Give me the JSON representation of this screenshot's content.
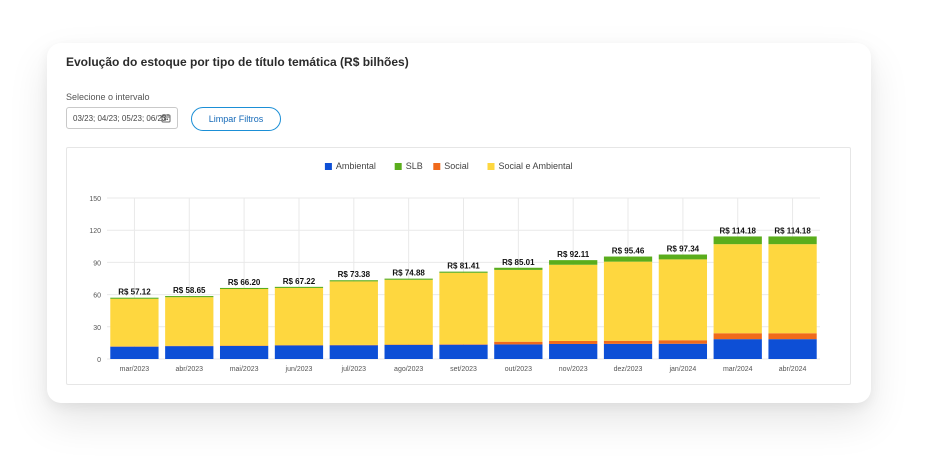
{
  "card": {
    "title": "Evolução do estoque por tipo de título temática (R$ bilhões)"
  },
  "filters": {
    "interval_label": "Selecione o intervalo",
    "interval_value": "03/23; 04/23; 05/23; 06/23",
    "calendar_icon": "calendar-icon",
    "clear_label": "Limpar Filtros"
  },
  "colors": {
    "Ambiental": "#0d4fd6",
    "SLB": "#5aad1c",
    "Social": "#f06a1b",
    "Social e Ambiental": "#fed73f",
    "grid": "#e9e9e9",
    "axis_text": "#555555",
    "button_border": "#1b8fd6"
  },
  "chart_data": {
    "type": "bar",
    "stacked": true,
    "categories": [
      "mar/2023",
      "abr/2023",
      "mai/2023",
      "jun/2023",
      "jul/2023",
      "ago/2023",
      "set/2023",
      "out/2023",
      "nov/2023",
      "dez/2023",
      "jan/2024",
      "mar/2024",
      "abr/2024"
    ],
    "series": [
      {
        "name": "Ambiental",
        "values": [
          11.5,
          12.0,
          12.2,
          12.6,
          12.8,
          13.2,
          13.3,
          13.6,
          14.0,
          14.1,
          14.2,
          18.5,
          18.5
        ]
      },
      {
        "name": "Social",
        "values": [
          0.3,
          0.3,
          0.3,
          0.3,
          0.3,
          0.3,
          0.5,
          2.5,
          2.8,
          2.9,
          3.3,
          5.5,
          5.5
        ]
      },
      {
        "name": "Social e Ambiental",
        "values": [
          44.3,
          45.3,
          52.7,
          53.3,
          59.2,
          60.3,
          66.5,
          66.9,
          71.0,
          73.7,
          75.3,
          83.0,
          83.0
        ]
      },
      {
        "name": "SLB",
        "values": [
          1.02,
          1.05,
          1.0,
          1.02,
          1.08,
          1.08,
          1.11,
          2.01,
          4.31,
          4.76,
          4.54,
          7.18,
          7.18
        ]
      }
    ],
    "totals": [
      57.12,
      58.65,
      66.2,
      67.22,
      73.38,
      74.88,
      81.41,
      85.01,
      92.11,
      95.46,
      97.34,
      114.18,
      114.18
    ],
    "total_labels": [
      "R$ 57.12",
      "R$ 58.65",
      "R$ 66.20",
      "R$ 67.22",
      "R$ 73.38",
      "R$ 74.88",
      "R$ 81.41",
      "R$ 85.01",
      "R$ 92.11",
      "R$ 95.46",
      "R$ 97.34",
      "R$ 114.18",
      "R$ 114.18"
    ],
    "legend": [
      "Ambiental",
      "SLB",
      "Social",
      "Social e Ambiental"
    ],
    "legend_position": "top-center",
    "ylim": [
      0,
      150
    ],
    "yticks": [
      0,
      30,
      60,
      90,
      120,
      150
    ],
    "grid": true,
    "title": "",
    "xlabel": "",
    "ylabel": ""
  }
}
